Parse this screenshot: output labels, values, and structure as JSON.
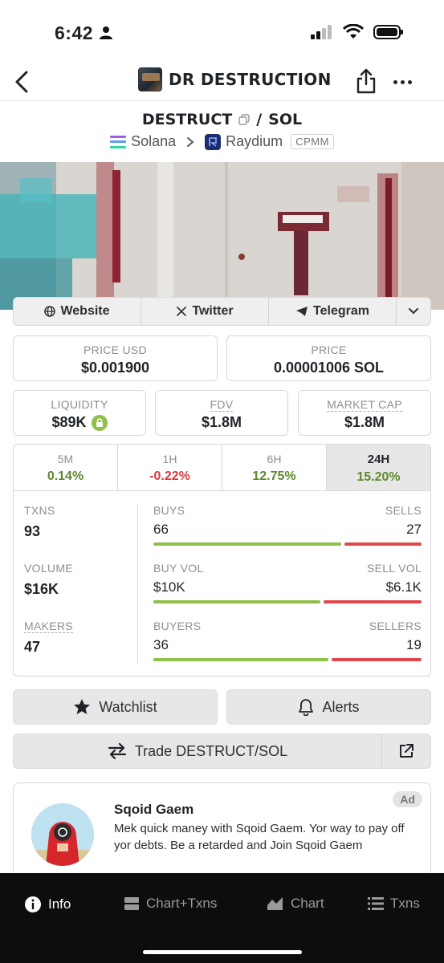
{
  "status_bar": {
    "time": "6:42"
  },
  "header": {
    "title": "DR DESTRUCTION"
  },
  "pair": {
    "base": "DESTRUCT",
    "separator": "/",
    "quote": "SOL"
  },
  "chain": {
    "network": "Solana",
    "dex": "Raydium",
    "pool_type": "CPMM"
  },
  "links": {
    "website": "Website",
    "twitter": "Twitter",
    "telegram": "Telegram"
  },
  "stats": {
    "price_usd_label": "PRICE USD",
    "price_usd": "$0.001900",
    "price_label": "PRICE",
    "price": "0.00001006 SOL",
    "liquidity_label": "LIQUIDITY",
    "liquidity": "$89K",
    "fdv_label": "FDV",
    "fdv": "$1.8M",
    "mcap_label": "MARKET CAP",
    "mcap": "$1.8M"
  },
  "timeframes": [
    {
      "label": "5M",
      "change": "0.14%",
      "direction": "up"
    },
    {
      "label": "1H",
      "change": "-0.22%",
      "direction": "down"
    },
    {
      "label": "6H",
      "change": "12.75%",
      "direction": "up"
    },
    {
      "label": "24H",
      "change": "15.20%",
      "direction": "up",
      "active": true
    }
  ],
  "txns": {
    "txns_label": "TXNS",
    "txns": "93",
    "volume_label": "VOLUME",
    "volume": "$16K",
    "makers_label": "MAKERS",
    "makers": "47",
    "buys_label": "BUYS",
    "buys": "66",
    "sells_label": "SELLS",
    "sells": "27",
    "buy_vol_label": "BUY VOL",
    "buy_vol": "$10K",
    "sell_vol_label": "SELL VOL",
    "sell_vol": "$6.1K",
    "buyers_label": "BUYERS",
    "buyers": "36",
    "sellers_label": "SELLERS",
    "sellers": "19",
    "buys_fraction": 0.71,
    "buy_vol_fraction": 0.63,
    "buyers_fraction": 0.66
  },
  "actions": {
    "watchlist": "Watchlist",
    "alerts": "Alerts",
    "trade": "Trade DESTRUCT/SOL"
  },
  "ad": {
    "badge": "Ad",
    "title": "Sqoid Gaem",
    "text": "Mek quick maney with Sqoid Gaem. Yor way to pay off yor debts. Be a retarded and Join Sqoid Gaem"
  },
  "bottom_nav": {
    "info": "Info",
    "chart_txns": "Chart+Txns",
    "chart": "Chart",
    "txns": "Txns"
  },
  "colors": {
    "positive": "#5c8a2a",
    "negative": "#d7393f",
    "buy_bar": "#8fc14a",
    "sell_bar": "#e0474c"
  }
}
